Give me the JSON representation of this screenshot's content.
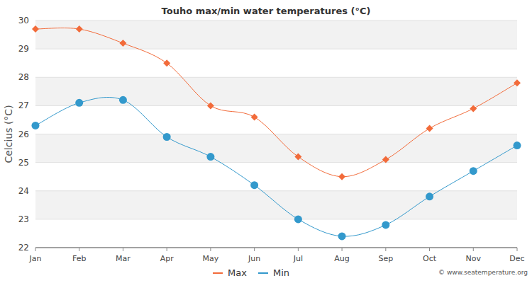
{
  "chart_data": {
    "type": "line",
    "title": "Touho max/min water temperatures (°C)",
    "y_label": "Celcius (°C)",
    "annotations": [
      "© www.seatemperature.org"
    ],
    "categories": [
      "Jan",
      "Feb",
      "Mar",
      "Apr",
      "May",
      "Jun",
      "Jul",
      "Aug",
      "Sep",
      "Oct",
      "Nov",
      "Dec"
    ],
    "series": [
      {
        "name": "Max",
        "color": "#f26b3a",
        "marker": "diamond",
        "line_style": "solid",
        "values": [
          29.7,
          29.7,
          29.2,
          28.5,
          27.0,
          26.6,
          25.2,
          24.5,
          25.1,
          26.2,
          26.9,
          27.8
        ]
      },
      {
        "name": "Min",
        "color": "#3399cc",
        "marker": "circle",
        "line_style": "solid",
        "values": [
          26.3,
          27.1,
          27.2,
          25.9,
          25.2,
          24.2,
          23.0,
          22.4,
          22.8,
          23.8,
          24.7,
          25.6
        ]
      }
    ],
    "ylim": [
      22,
      30
    ],
    "yticks": [
      22,
      23,
      24,
      25,
      26,
      27,
      28,
      29,
      30
    ],
    "grid": true,
    "legend": "bottom"
  }
}
